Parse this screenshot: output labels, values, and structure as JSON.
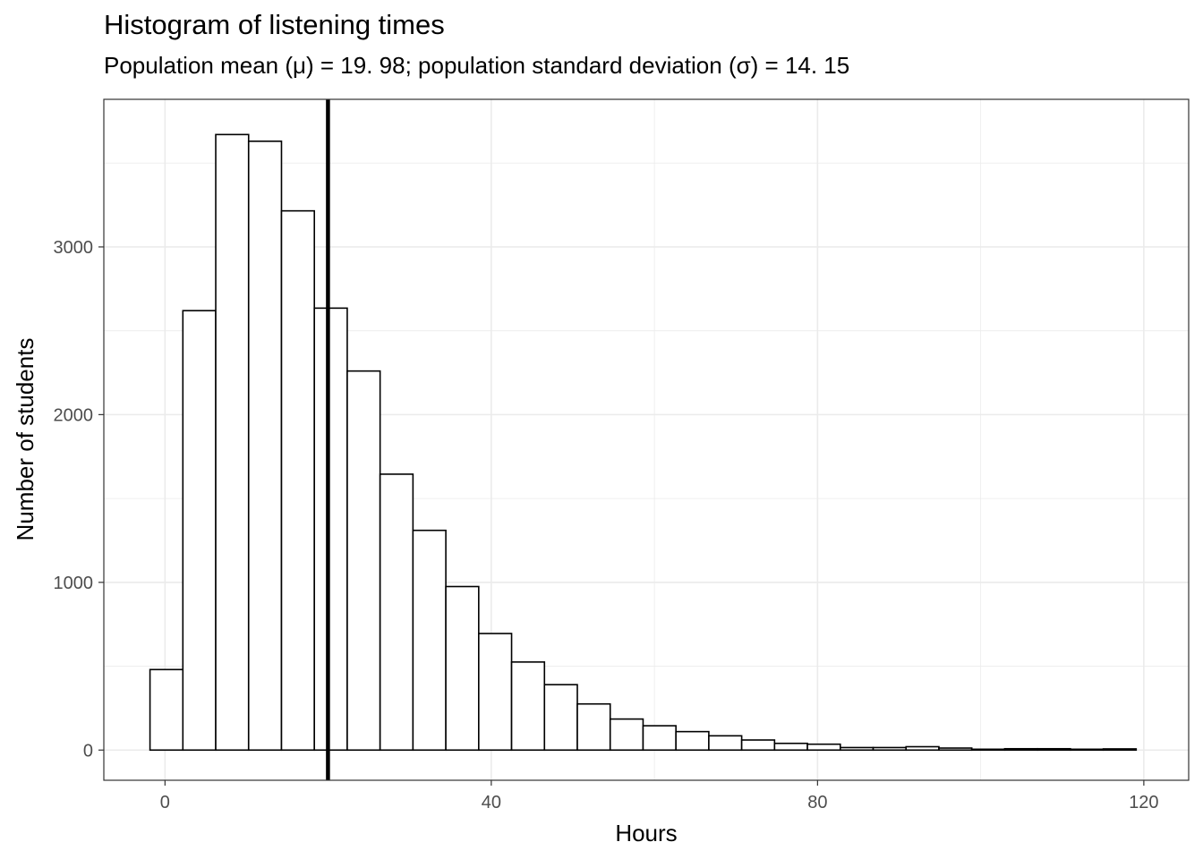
{
  "chart_data": {
    "type": "bar",
    "title": "Histogram of listening times",
    "subtitle": "Population mean (μ) = 19. 98; population standard deviation (σ) = 14. 15",
    "xlabel": "Hours",
    "ylabel": "Number of students",
    "xlim": [
      -7.5,
      125.5
    ],
    "ylim": [
      -180,
      3880
    ],
    "x_ticks": [
      0,
      40,
      80,
      120
    ],
    "y_ticks": [
      0,
      1000,
      2000,
      3000
    ],
    "grid": true,
    "legend": "none",
    "bin_width": 4.03,
    "bin_start": -1.84,
    "values": [
      480,
      2620,
      3670,
      3630,
      3215,
      2635,
      2260,
      1645,
      1310,
      975,
      695,
      525,
      390,
      275,
      185,
      145,
      110,
      85,
      60,
      40,
      35,
      15,
      15,
      20,
      12,
      5,
      8,
      8,
      5,
      7
    ],
    "mean_line": 19.98,
    "bar_fill": "#ffffff",
    "bar_stroke": "#000000",
    "grid_color": "#ebebeb"
  }
}
